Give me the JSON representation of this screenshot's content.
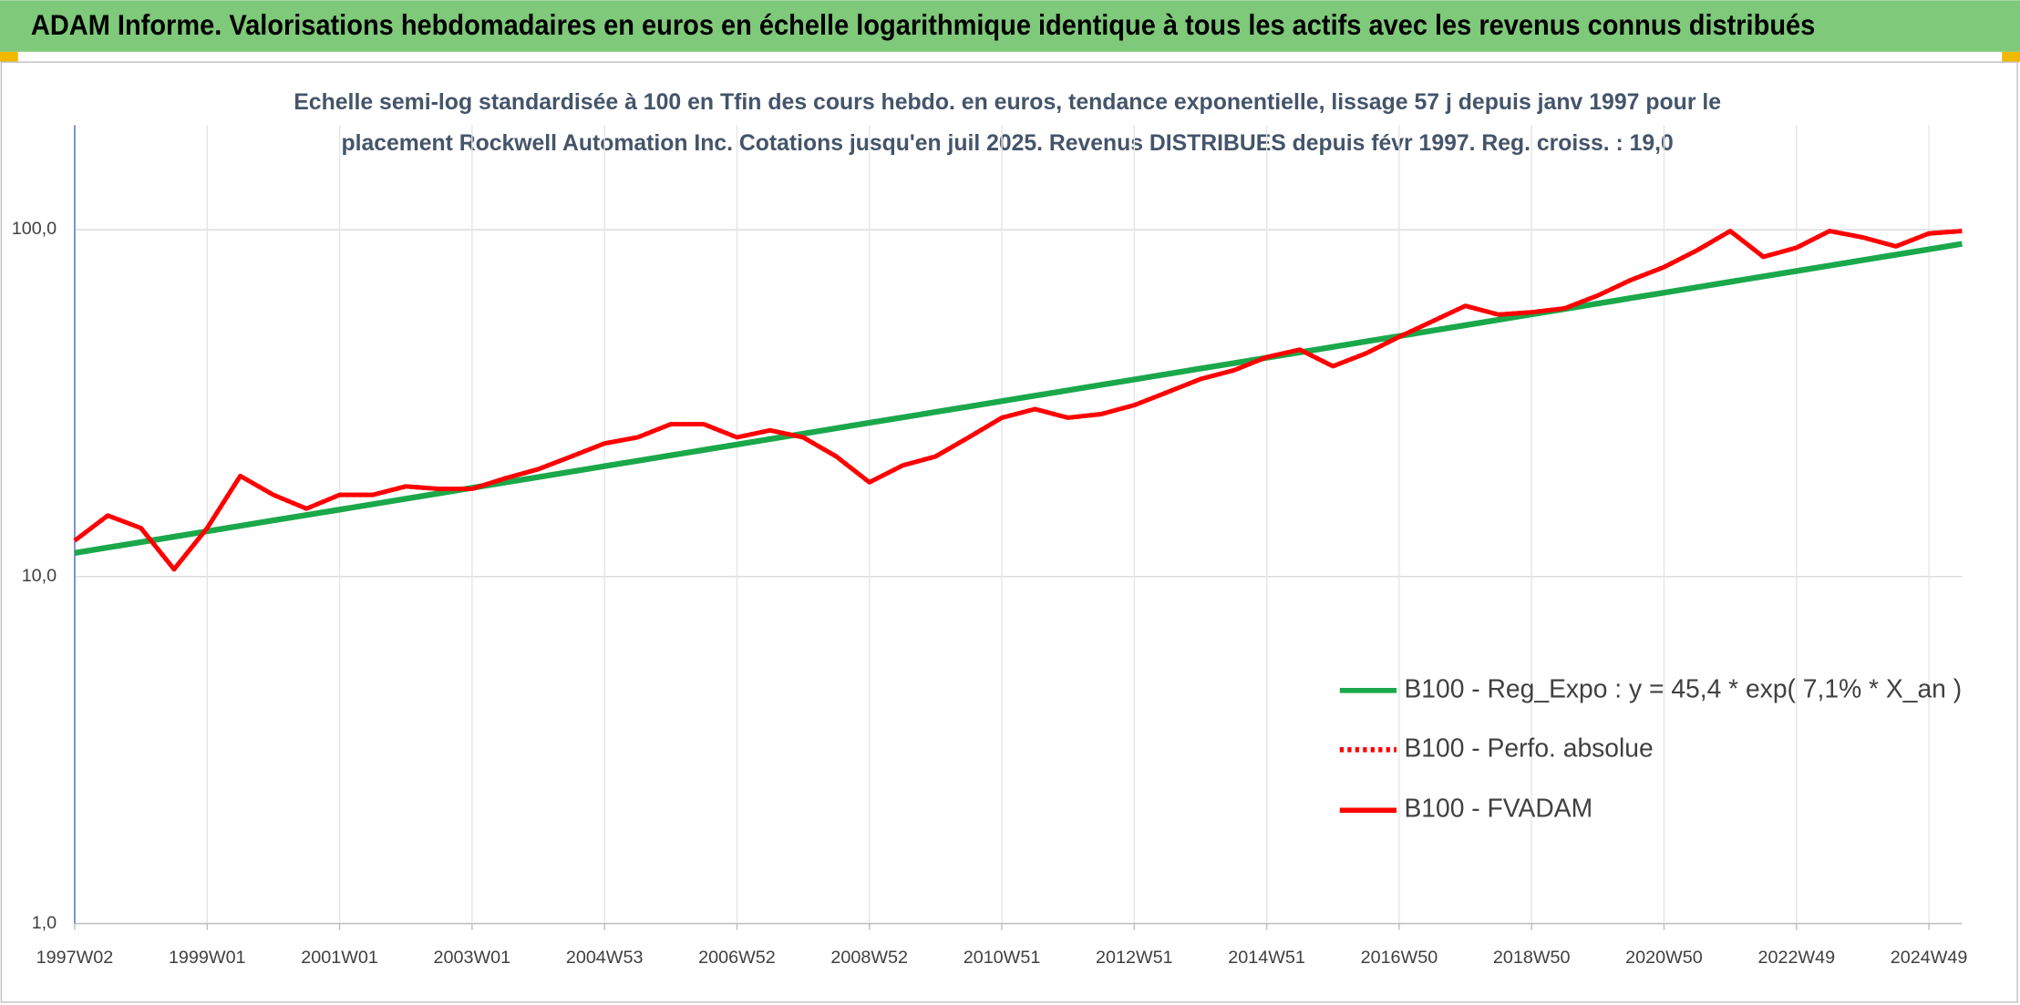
{
  "chart_data": {
    "type": "line",
    "title": "ADAM Informe. Valorisations hebdomadaires en euros en échelle logarithmique identique à tous les actifs avec les revenus connus distribués",
    "subtitle": [
      "Echelle semi-log standardisée à 100 en Tfin des cours hebdo. en euros, tendance exponentielle, lissage 57 j depuis janv 1997 pour le",
      "placement Rockwell Automation Inc. Cotations jusqu'en juil 2025. Revenus DISTRIBUES depuis févr 1997. Reg. croiss. : 19,0"
    ],
    "categories": [
      "1997W02",
      null,
      null,
      null,
      "1999W01",
      null,
      null,
      null,
      "2001W01",
      null,
      null,
      null,
      "2003W01",
      null,
      null,
      null,
      "2004W53",
      null,
      null,
      null,
      "2006W52",
      null,
      null,
      null,
      "2008W52",
      null,
      null,
      null,
      "2010W51",
      null,
      null,
      null,
      "2012W51",
      null,
      null,
      null,
      "2014W51",
      null,
      null,
      null,
      "2016W50",
      null,
      null,
      null,
      "2018W50",
      null,
      null,
      null,
      "2020W50",
      null,
      null,
      null,
      "2022W49",
      null,
      null,
      null,
      "2024W49",
      null
    ],
    "series": [
      {
        "name": "B100 - Reg_Expo : y = 45,4 * exp( 7,1% *  X_an )",
        "color": "#1aa84a",
        "style": "solid",
        "values": [
          11.7,
          12.13,
          12.57,
          13.03,
          13.51,
          14.01,
          14.52,
          15.05,
          15.6,
          16.17,
          16.77,
          17.38,
          18.02,
          18.68,
          19.36,
          20.07,
          20.81,
          21.57,
          22.36,
          23.18,
          24.03,
          24.91,
          25.82,
          26.77,
          27.75,
          28.77,
          29.82,
          30.91,
          32.04,
          33.22,
          34.43,
          35.7,
          37.0,
          38.36,
          39.77,
          41.22,
          42.73,
          44.3,
          45.92,
          47.61,
          49.35,
          51.16,
          53.03,
          54.98,
          56.99,
          59.08,
          61.24,
          63.49,
          65.81,
          68.23,
          70.73,
          73.32,
          76.0,
          78.79,
          81.68,
          84.67,
          87.77,
          90.99
        ]
      },
      {
        "name": "B100 - Perfo. absolue",
        "color": "#ff0000",
        "style": "dotted",
        "values": [
          12.7,
          15.0,
          13.8,
          10.5,
          13.8,
          19.5,
          17.2,
          15.7,
          17.2,
          17.2,
          18.2,
          17.9,
          17.9,
          19.2,
          20.4,
          22.2,
          24.2,
          25.2,
          27.5,
          27.5,
          25.2,
          26.4,
          25.2,
          22.2,
          18.7,
          20.9,
          22.2,
          25.2,
          28.7,
          30.4,
          28.7,
          29.4,
          31.2,
          34.0,
          37.1,
          39.3,
          42.9,
          45.1,
          40.4,
          44.0,
          49.1,
          54.4,
          60.3,
          56.9,
          57.8,
          59.3,
          64.6,
          71.6,
          78.0,
          87.2,
          99.1,
          83.5,
          88.7,
          99.1,
          95.0,
          89.5,
          97.5,
          99.1
        ]
      },
      {
        "name": "B100 - FVADAM",
        "color": "#ff0000",
        "style": "solid",
        "values": [
          12.7,
          15.0,
          13.8,
          10.5,
          13.8,
          19.5,
          17.2,
          15.7,
          17.2,
          17.2,
          18.2,
          17.9,
          17.9,
          19.2,
          20.4,
          22.2,
          24.2,
          25.2,
          27.5,
          27.5,
          25.2,
          26.4,
          25.2,
          22.2,
          18.7,
          20.9,
          22.2,
          25.2,
          28.7,
          30.4,
          28.7,
          29.4,
          31.2,
          34.0,
          37.1,
          39.3,
          42.9,
          45.1,
          40.4,
          44.0,
          49.1,
          54.4,
          60.3,
          56.9,
          57.8,
          59.3,
          64.6,
          71.6,
          78.0,
          87.2,
          99.1,
          83.5,
          88.7,
          99.1,
          95.0,
          89.5,
          97.5,
          99.1
        ]
      }
    ],
    "ylim": [
      1,
      200
    ],
    "yticks": [
      {
        "value": 1,
        "label": "1,0"
      },
      {
        "value": 10,
        "label": "10,0"
      },
      {
        "value": 100,
        "label": "100,0"
      }
    ],
    "log_scale": true,
    "grid": true,
    "legend": "lower right"
  }
}
